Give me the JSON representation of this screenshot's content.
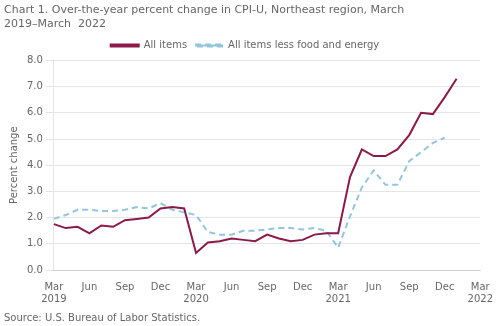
{
  "chart_data": {
    "type": "line",
    "title": "Chart 1. Over-the-year percent change in CPI-U, Northeast region, March\n2019–March  2022",
    "y_label": "Percent change",
    "source": "Source: U.S. Bureau of Labor Statistics.",
    "categories": [
      "Mar\n2019",
      null,
      null,
      "Jun",
      null,
      null,
      "Sep",
      null,
      null,
      "Dec",
      null,
      null,
      "Mar\n2020",
      null,
      null,
      "Jun",
      null,
      null,
      "Sep",
      null,
      null,
      "Dec",
      null,
      null,
      "Mar\n2021",
      null,
      null,
      "Jun",
      null,
      null,
      "Sep",
      null,
      null,
      "Dec",
      null,
      null,
      "Mar\n2022"
    ],
    "series": [
      {
        "name": "All items",
        "color": "#8B1A4A",
        "line_style": "solid",
        "values": [
          1.75,
          1.6,
          1.65,
          1.4,
          1.7,
          1.65,
          1.9,
          1.95,
          2.0,
          2.35,
          2.4,
          2.35,
          0.65,
          1.05,
          1.1,
          1.2,
          1.15,
          1.1,
          1.35,
          1.2,
          1.1,
          1.15,
          1.35,
          1.4,
          1.4,
          3.55,
          4.6,
          4.35,
          4.35,
          4.6,
          5.15,
          6.0,
          5.95,
          6.6,
          7.3,
          null,
          null
        ]
      },
      {
        "name": "All items less food and energy",
        "color": "#92C5DE",
        "line_style": "dashed",
        "values": [
          1.95,
          2.1,
          2.3,
          2.3,
          2.25,
          2.25,
          2.3,
          2.4,
          2.35,
          2.55,
          2.3,
          2.2,
          2.1,
          1.45,
          1.35,
          1.35,
          1.5,
          1.5,
          1.55,
          1.6,
          1.6,
          1.55,
          1.6,
          1.5,
          0.85,
          2.05,
          3.15,
          3.8,
          3.25,
          3.25,
          4.15,
          4.5,
          4.85,
          5.05,
          null,
          null,
          null
        ]
      }
    ],
    "ylim": [
      0.0,
      8.0
    ],
    "yticks": [
      {
        "value": 0,
        "label": "0.0"
      },
      {
        "value": 1,
        "label": "1.0"
      },
      {
        "value": 2,
        "label": "2.0"
      },
      {
        "value": 3,
        "label": "3.0"
      },
      {
        "value": 4,
        "label": "4.0"
      },
      {
        "value": 5,
        "label": "5.0"
      },
      {
        "value": 6,
        "label": "6.0"
      },
      {
        "value": 7,
        "label": "7.0"
      },
      {
        "value": 8,
        "label": "8.0"
      }
    ],
    "grid": "y",
    "legend": "top"
  }
}
